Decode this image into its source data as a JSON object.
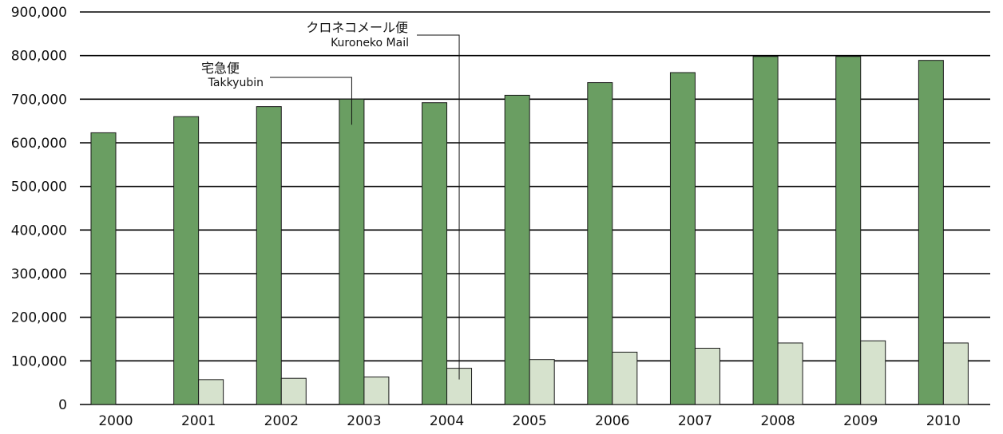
{
  "chart_data": {
    "type": "bar",
    "categories": [
      "2000",
      "2001",
      "2002",
      "2003",
      "2004",
      "2005",
      "2006",
      "2007",
      "2008",
      "2009",
      "2010"
    ],
    "series": [
      {
        "name": "宅急便 Takkyubin",
        "color": "#6a9e62",
        "values": [
          623000,
          660000,
          683000,
          700000,
          692000,
          709000,
          738000,
          761000,
          798000,
          798000,
          789000
        ]
      },
      {
        "name": "クロネコメール便 Kuroneko Mail",
        "color": "#d6e2cd",
        "values": [
          null,
          57000,
          60000,
          63000,
          83000,
          103000,
          120000,
          129000,
          141000,
          146000,
          141000
        ]
      }
    ],
    "ylim": [
      0,
      900000
    ],
    "y_ticks": [
      "0",
      "100,000",
      "200,000",
      "300,000",
      "400,000",
      "500,000",
      "600,000",
      "700,000",
      "800,000",
      "900,000"
    ],
    "grid": true,
    "annotations": [
      {
        "text_jp": "宅急便",
        "text_en": "Takkyubin",
        "series": 0,
        "category": "2003"
      },
      {
        "text_jp": "クロネコメール便",
        "text_en": "Kuroneko Mail",
        "series": 1,
        "category": "2004"
      }
    ]
  }
}
